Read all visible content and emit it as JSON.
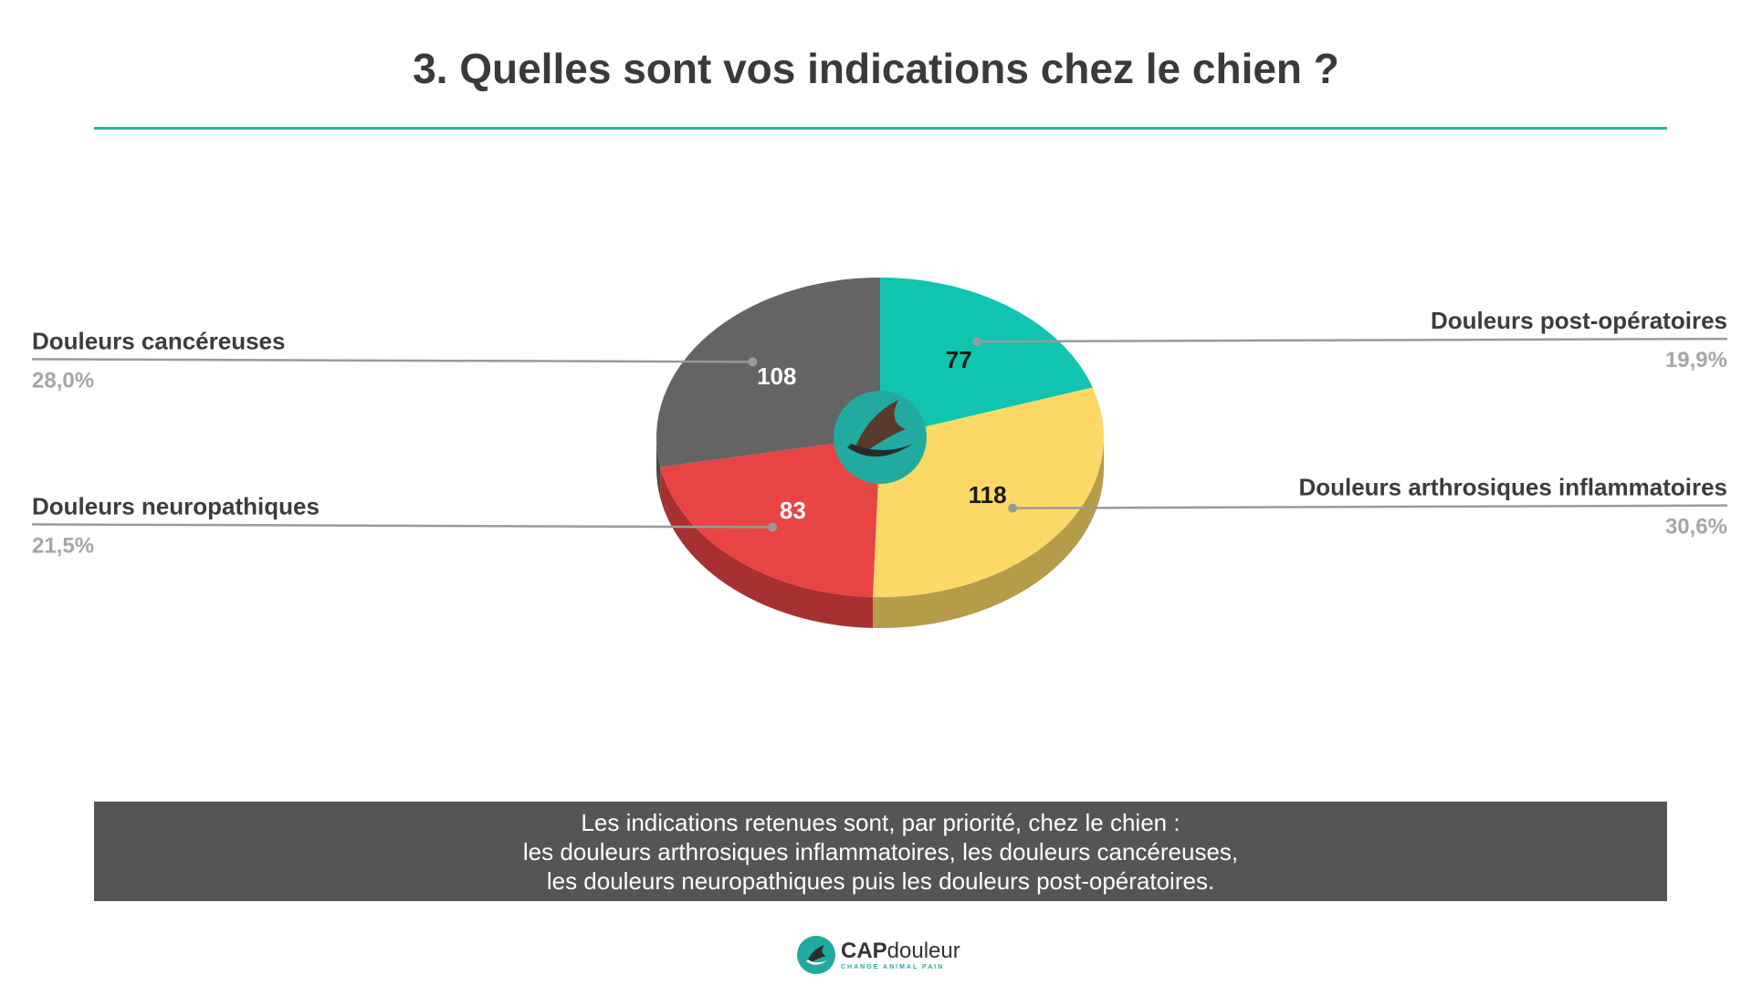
{
  "title": "3. Quelles sont vos indications chez le chien ?",
  "colors": {
    "accent": "#20b8aa",
    "post_op": "#10c4b0",
    "arthro": "#fcd966",
    "neuro": "#e84444",
    "cancer": "#646464",
    "summary_bg": "#555555"
  },
  "chart_data": {
    "type": "pie",
    "style": "3d",
    "center_logo": true,
    "slices": [
      {
        "label": "Douleurs post-opératoires",
        "value": 77,
        "percent": "19,9%",
        "color": "#10c4b0",
        "value_color": "#1a1a1a",
        "side": "right"
      },
      {
        "label": "Douleurs arthrosiques inflammatoires",
        "value": 118,
        "percent": "30,6%",
        "color": "#fcd966",
        "value_color": "#1a1a1a",
        "side": "right"
      },
      {
        "label": "Douleurs neuropathiques",
        "value": 83,
        "percent": "21,5%",
        "color": "#e84444",
        "value_color": "#ffffff",
        "side": "left"
      },
      {
        "label": "Douleurs cancéreuses",
        "value": 108,
        "percent": "28,0%",
        "color": "#646464",
        "value_color": "#ffffff",
        "side": "left"
      }
    ]
  },
  "summary": {
    "line1": "Les indications retenues sont, par priorité, chez le chien :",
    "line2": "les douleurs arthrosiques inflammatoires, les douleurs cancéreuses,",
    "line3": "les douleurs neuropathiques puis les douleurs post-opératoires."
  },
  "footer": {
    "logo_icon": "capdouleur-logo-icon",
    "brand_bold": "CAP",
    "brand_rest": "douleur",
    "tagline": "CHANGE ANIMAL PAIN"
  }
}
